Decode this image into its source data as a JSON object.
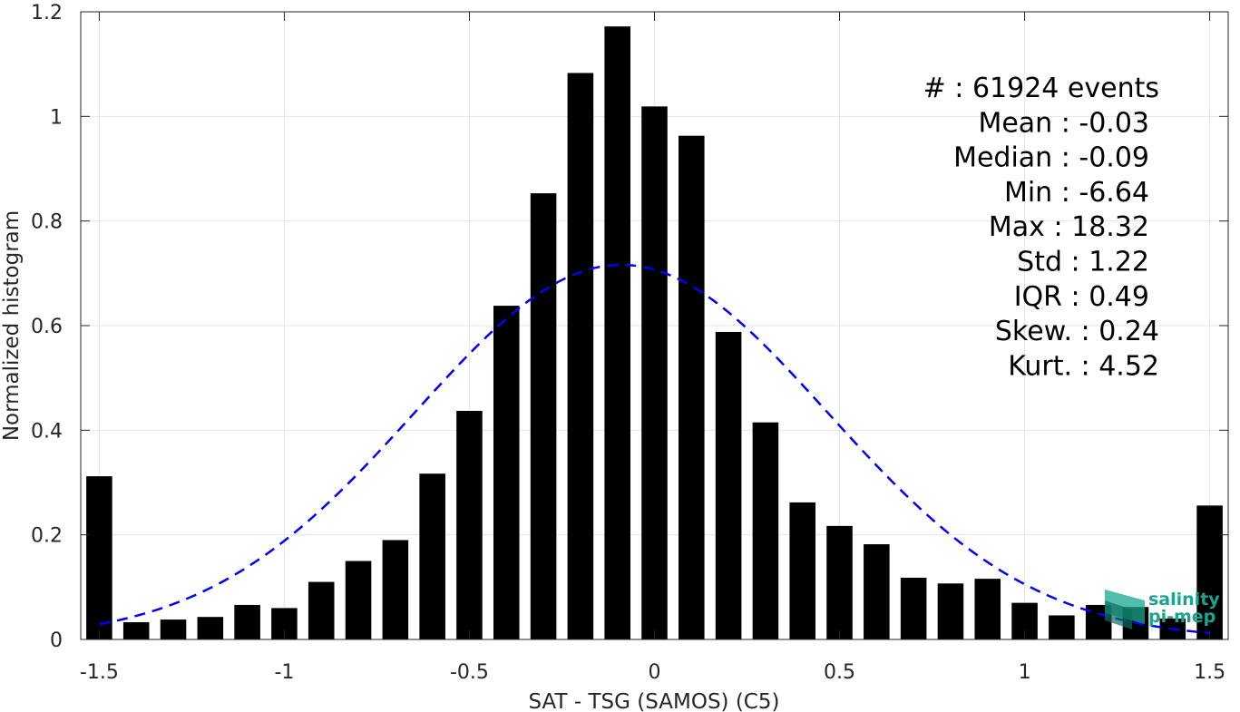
{
  "chart_data": {
    "type": "bar",
    "xlabel": "SAT - TSG (SAMOS) (C5)",
    "ylabel": "Normalized histogram",
    "xlim": [
      -1.55,
      1.55
    ],
    "ylim": [
      0,
      1.2
    ],
    "xticks": [
      -1.5,
      -1,
      -0.5,
      0,
      0.5,
      1,
      1.5
    ],
    "xtick_labels": [
      "-1.5",
      "-1",
      "-0.5",
      "0",
      "0.5",
      "1",
      "1.5"
    ],
    "yticks": [
      0,
      0.2,
      0.4,
      0.6,
      0.8,
      1,
      1.2
    ],
    "ytick_labels": [
      "0",
      "0.2",
      "0.4",
      "0.6",
      "0.8",
      "1",
      "1.2"
    ],
    "grid": true,
    "bar_color": "#000000",
    "bins": [
      {
        "x": -1.5,
        "y": 0.312
      },
      {
        "x": -1.4,
        "y": 0.033
      },
      {
        "x": -1.3,
        "y": 0.038
      },
      {
        "x": -1.2,
        "y": 0.043
      },
      {
        "x": -1.1,
        "y": 0.066
      },
      {
        "x": -1.0,
        "y": 0.06
      },
      {
        "x": -0.9,
        "y": 0.11
      },
      {
        "x": -0.8,
        "y": 0.15
      },
      {
        "x": -0.7,
        "y": 0.19
      },
      {
        "x": -0.6,
        "y": 0.317
      },
      {
        "x": -0.5,
        "y": 0.437
      },
      {
        "x": -0.4,
        "y": 0.638
      },
      {
        "x": -0.3,
        "y": 0.853
      },
      {
        "x": -0.2,
        "y": 1.083
      },
      {
        "x": -0.1,
        "y": 1.172
      },
      {
        "x": 0.0,
        "y": 1.019
      },
      {
        "x": 0.1,
        "y": 0.963
      },
      {
        "x": 0.2,
        "y": 0.588
      },
      {
        "x": 0.3,
        "y": 0.415
      },
      {
        "x": 0.4,
        "y": 0.262
      },
      {
        "x": 0.5,
        "y": 0.217
      },
      {
        "x": 0.6,
        "y": 0.182
      },
      {
        "x": 0.7,
        "y": 0.118
      },
      {
        "x": 0.8,
        "y": 0.107
      },
      {
        "x": 0.9,
        "y": 0.116
      },
      {
        "x": 1.0,
        "y": 0.07
      },
      {
        "x": 1.1,
        "y": 0.046
      },
      {
        "x": 1.2,
        "y": 0.066
      },
      {
        "x": 1.3,
        "y": 0.062
      },
      {
        "x": 1.4,
        "y": 0.04
      },
      {
        "x": 1.5,
        "y": 0.256
      }
    ],
    "fit": {
      "type": "gaussian",
      "mean": -0.09,
      "sigma": 0.557,
      "color": "#0000ff",
      "style": "dashed",
      "x_range": [
        -1.5,
        1.5
      ]
    },
    "stats": [
      {
        "label": "#  : 61924 events"
      },
      {
        "label": "Mean : -0.03"
      },
      {
        "label": "Median : -0.09"
      },
      {
        "label": "Min : -6.64"
      },
      {
        "label": "Max : 18.32"
      },
      {
        "label": "Std : 1.22"
      },
      {
        "label": "IQR : 0.49"
      },
      {
        "label": "Skew. : 0.24"
      },
      {
        "label": "Kurt. : 4.52"
      }
    ]
  },
  "logo": {
    "line1": "salinity",
    "line2": "pi-mep",
    "color": "#1aa58e"
  }
}
